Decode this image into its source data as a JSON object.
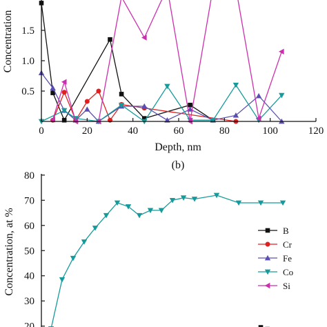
{
  "colors": {
    "B": "#111111",
    "Cr": "#e02020",
    "Fe": "#5a4fb0",
    "Co": "#169a9a",
    "Si": "#cc2fae",
    "axis": "#111111"
  },
  "chart_data": [
    {
      "type": "line",
      "title": "",
      "xlabel": "Depth, nm",
      "ylabel": "Concentration",
      "xlim": [
        0,
        120
      ],
      "ylim": [
        0,
        2
      ],
      "x_ticks": [
        "0",
        "20",
        "40",
        "60",
        "80",
        "100",
        "120"
      ],
      "y_ticks": [
        "0.5",
        "1.0",
        "1.5"
      ],
      "cropped_top": true,
      "series": [
        {
          "name": "B",
          "marker": "square",
          "x": [
            0,
            5,
            10,
            30,
            35,
            45,
            65,
            75
          ],
          "y": [
            1.95,
            0.47,
            0.02,
            1.35,
            0.45,
            0.05,
            0.27,
            0.02
          ]
        },
        {
          "name": "Cr",
          "marker": "circle",
          "x": [
            5,
            10,
            15,
            20,
            25,
            30,
            35,
            45,
            85
          ],
          "y": [
            0.02,
            0.48,
            0.02,
            0.33,
            0.5,
            0.02,
            0.28,
            0.22,
            0.0
          ]
        },
        {
          "name": "Fe",
          "marker": "triangle-up",
          "x": [
            0,
            5,
            10,
            15,
            20,
            25,
            35,
            45,
            55,
            65,
            75,
            85,
            95,
            105
          ],
          "y": [
            0.8,
            0.55,
            0.18,
            0.02,
            0.2,
            0.0,
            0.25,
            0.25,
            0.02,
            0.2,
            0.02,
            0.1,
            0.42,
            0.0
          ]
        },
        {
          "name": "Co",
          "marker": "triangle-down",
          "x": [
            0,
            10,
            15,
            25,
            35,
            45,
            55,
            65,
            75,
            85,
            95,
            105
          ],
          "y": [
            0.0,
            0.18,
            0.05,
            0.0,
            0.27,
            0.0,
            0.58,
            0.02,
            0.02,
            0.6,
            0.02,
            0.43
          ]
        },
        {
          "name": "Si",
          "marker": "triangle-left",
          "x": [
            5,
            10,
            15,
            25,
            35,
            45,
            55,
            65,
            75,
            85,
            95,
            105
          ],
          "y": [
            0.03,
            0.65,
            0.0,
            0.0,
            2.05,
            1.38,
            2.2,
            0.0,
            2.2,
            2.2,
            0.05,
            1.15
          ]
        }
      ]
    },
    {
      "type": "line",
      "caption": "(b)",
      "title": "",
      "xlabel": "",
      "ylabel": "Concentration, at %",
      "ylim": [
        18,
        80
      ],
      "xlim": [
        0,
        120
      ],
      "y_ticks": [
        "20",
        "30",
        "40",
        "50",
        "60",
        "70",
        "80"
      ],
      "cropped_bottom": true,
      "legend": {
        "placement": "right-middle",
        "entries": [
          "B",
          "Cr",
          "Fe",
          "Co",
          "Si"
        ]
      },
      "series": [
        {
          "name": "Co",
          "marker": "triangle-down",
          "x": [
            0,
            5,
            10,
            15,
            20,
            25,
            30,
            35,
            40,
            45,
            50,
            55,
            60,
            65,
            75,
            85,
            95,
            105
          ],
          "y": [
            19,
            38.5,
            47,
            53.5,
            59,
            64,
            69,
            67.5,
            64,
            66,
            66,
            70,
            71,
            70.5,
            72,
            69,
            69,
            69
          ]
        },
        {
          "name": "B",
          "marker": "square",
          "x": [
            95,
            98
          ],
          "y": [
            19.5,
            18.8
          ]
        }
      ]
    }
  ]
}
